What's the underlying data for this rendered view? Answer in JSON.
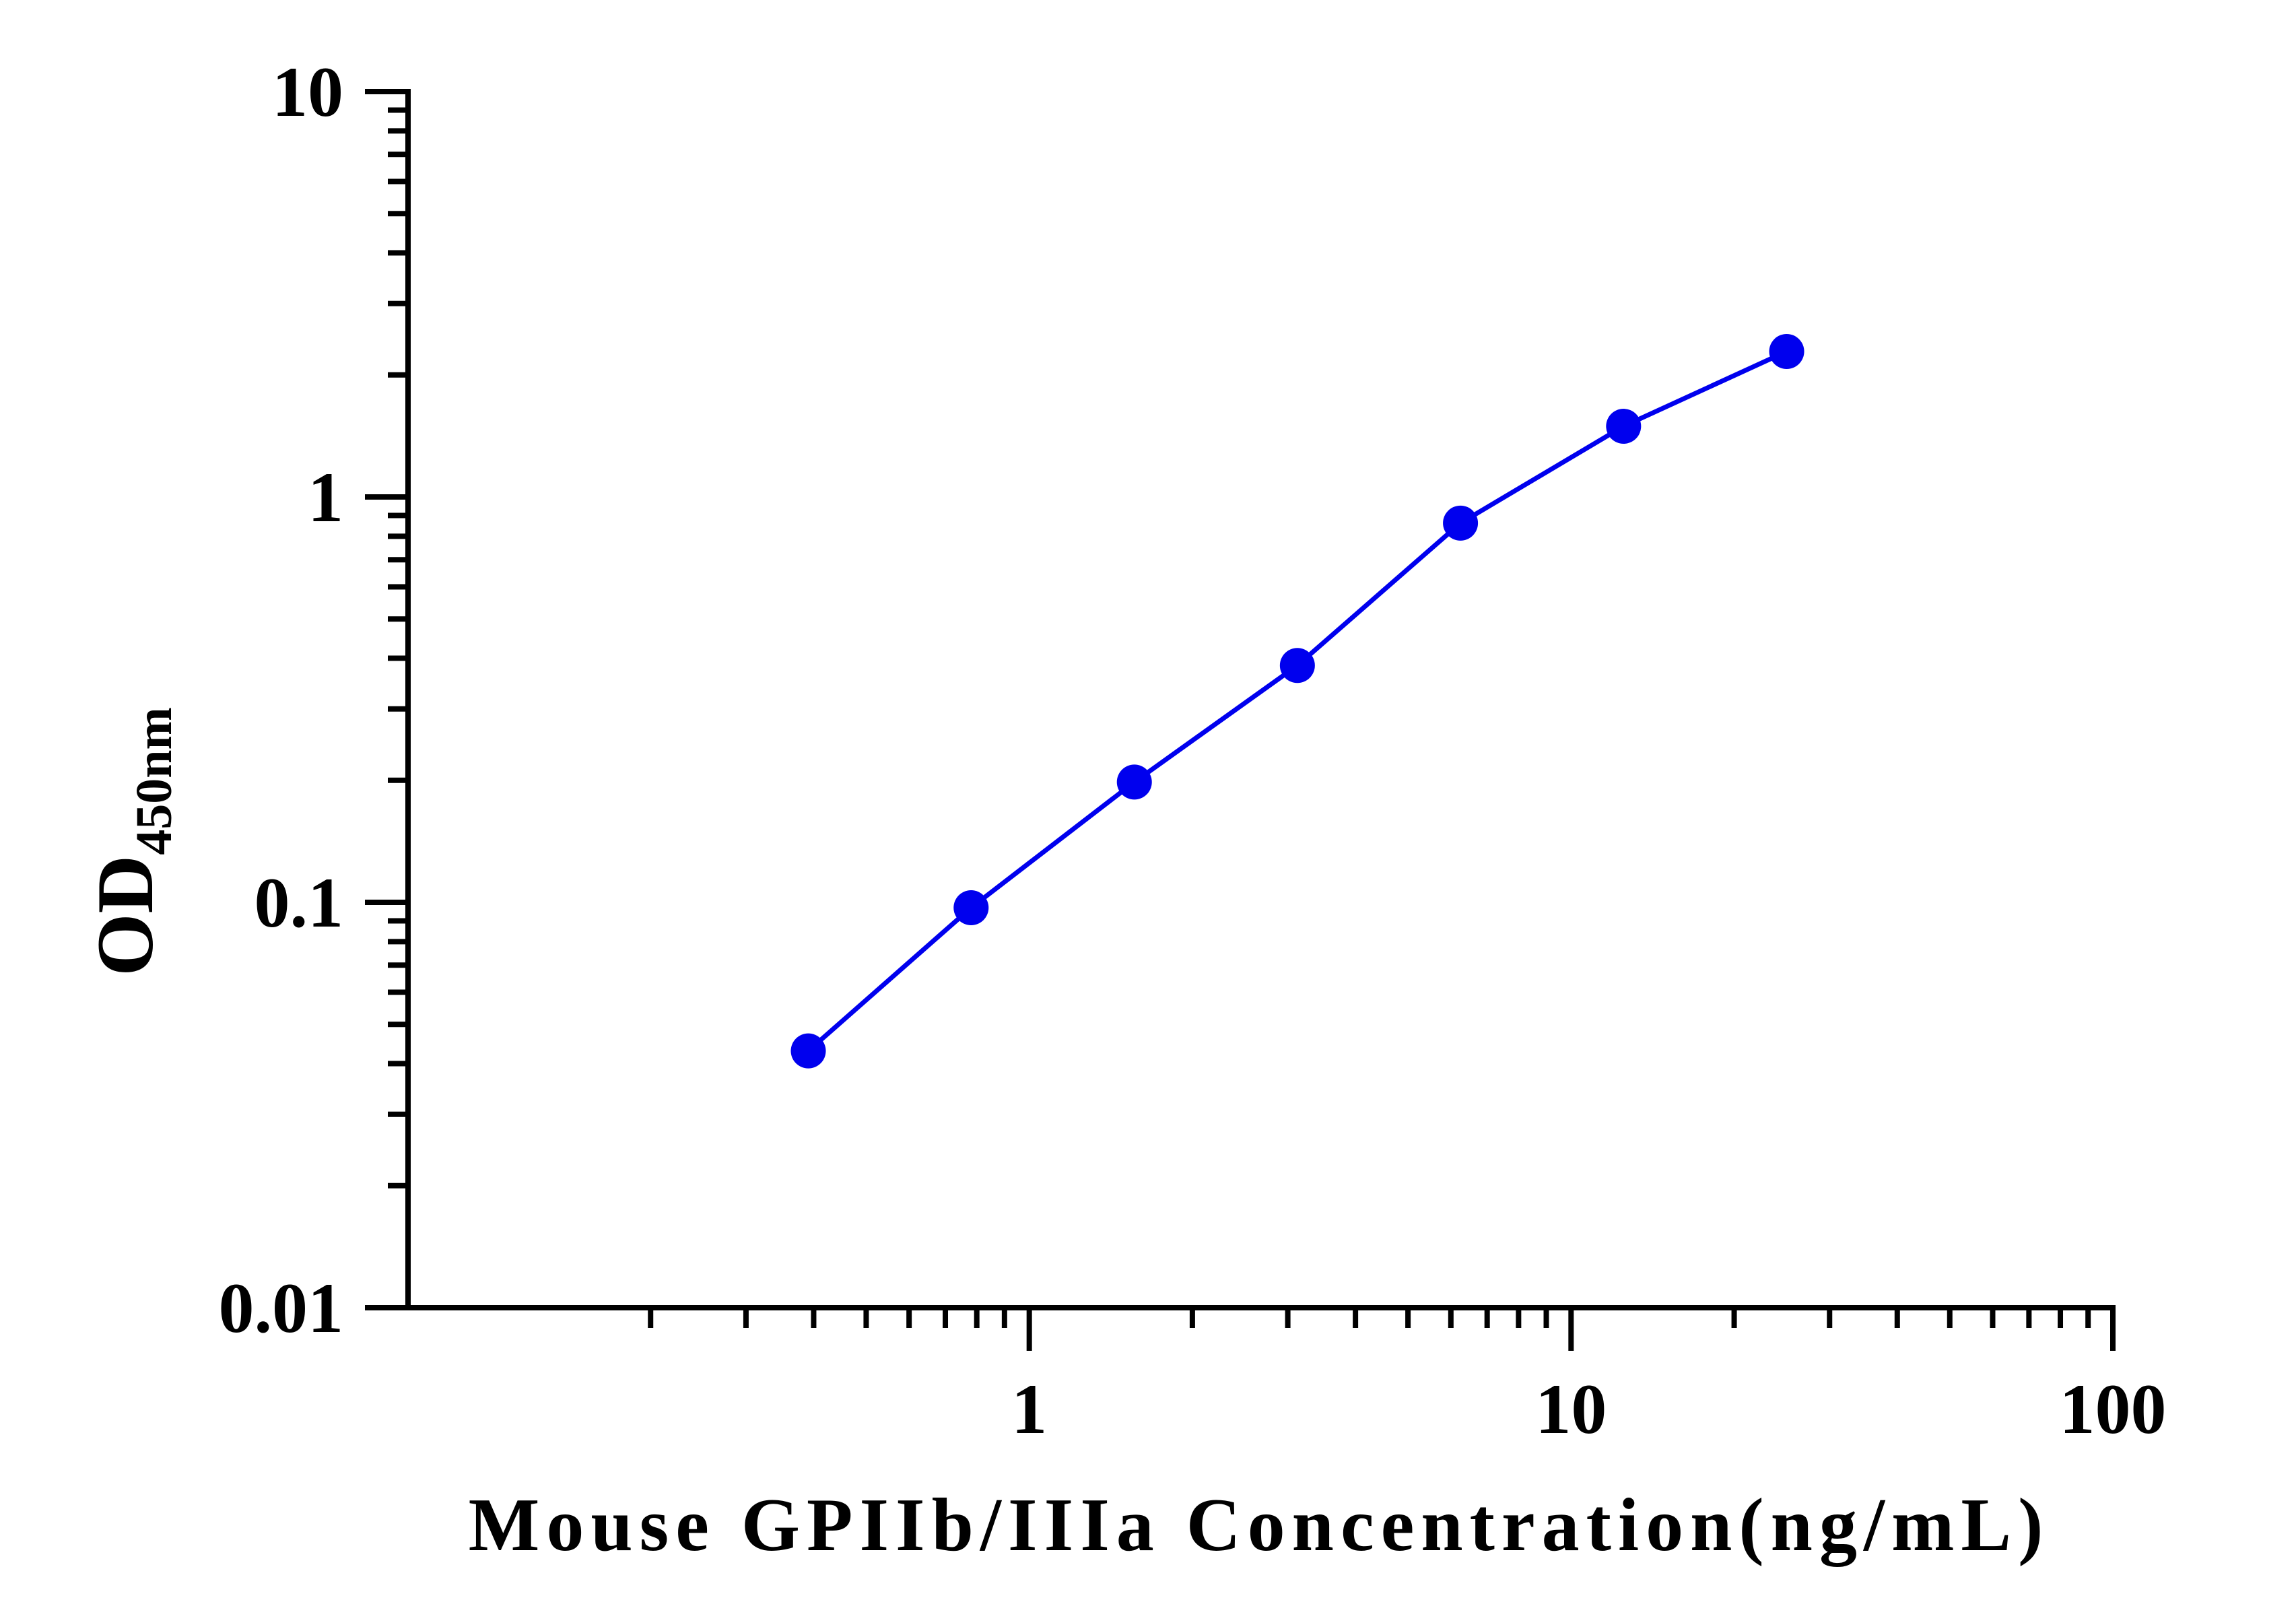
{
  "chart_data": {
    "type": "line",
    "title": "",
    "xlabel": "Mouse GPIIb/IIIa Concentration(ng/mL)",
    "ylabel_main": "OD",
    "ylabel_sub": "450nm",
    "x_scale": "log",
    "y_scale": "log",
    "xlim": [
      0.1,
      100
    ],
    "ylim": [
      0.01,
      10
    ],
    "x_ticks": [
      {
        "value": 1,
        "label": "1"
      },
      {
        "value": 10,
        "label": "10"
      },
      {
        "value": 100,
        "label": "100"
      }
    ],
    "y_ticks": [
      {
        "value": 0.01,
        "label": "0.01"
      },
      {
        "value": 0.1,
        "label": "0.1"
      },
      {
        "value": 1,
        "label": "1"
      },
      {
        "value": 10,
        "label": "10"
      }
    ],
    "grid": false,
    "legend": "none",
    "series": [
      {
        "color": "#0000ee",
        "marker": "circle",
        "x": [
          0.391,
          0.781,
          1.563,
          3.125,
          6.25,
          12.5,
          25
        ],
        "y": [
          0.043,
          0.097,
          0.198,
          0.384,
          0.862,
          1.494,
          2.285
        ]
      }
    ]
  }
}
